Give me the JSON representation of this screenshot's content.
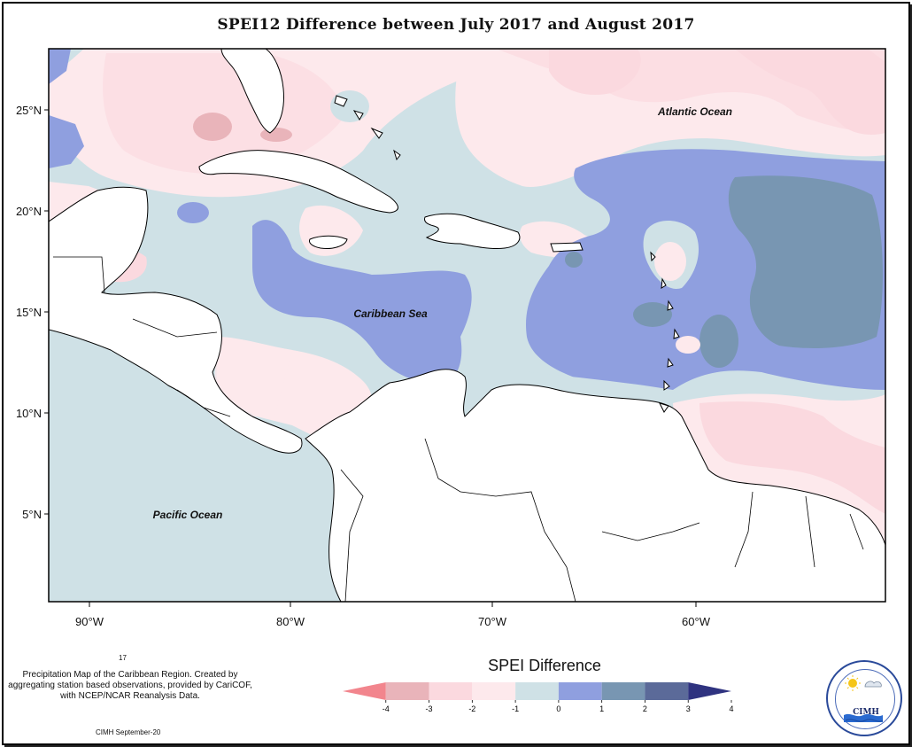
{
  "title": "SPEI12 Difference between July 2017 and August 2017",
  "lat_ticks": [
    "25°N",
    "20°N",
    "15°N",
    "10°N",
    "5°N"
  ],
  "lon_ticks": [
    "90°W",
    "80°W",
    "70°W",
    "60°W"
  ],
  "ocean_labels": {
    "atlantic": "Atlantic Ocean",
    "caribbean": "Caribbean Sea",
    "pacific": "Pacific Ocean"
  },
  "footer": {
    "number": "17",
    "caption": "Precipitation Map of the Caribbean Region. Created by aggregating station based observations, provided by CariCOF, with NCEP/NCAR Reanalysis Data.",
    "date": "CIMH September-20"
  },
  "legend": {
    "title": "SPEI Difference",
    "ticks": [
      "-4",
      "-3",
      "-2",
      "-1",
      "0",
      "1",
      "2",
      "3",
      "4"
    ],
    "colors": [
      "#f2858d",
      "#e9b4ba",
      "#fbd9df",
      "#fde9ec",
      "#cfe1e6",
      "#8f9fdf",
      "#7896b2",
      "#5b6a99",
      "#2f3380"
    ]
  },
  "logo": {
    "name": "CIMH",
    "icon": "sun-cloud-icon"
  },
  "palette": {
    "land": "#ffffff",
    "coast": "#000000"
  }
}
